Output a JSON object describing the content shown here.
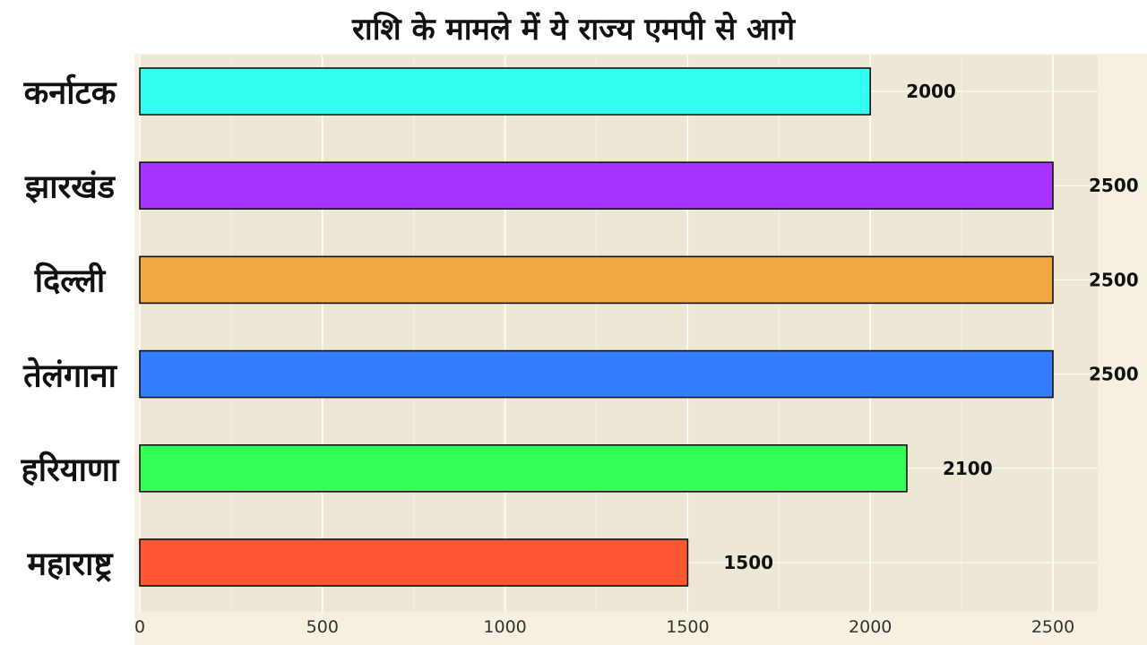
{
  "chart_data": {
    "type": "bar",
    "orientation": "horizontal",
    "title": "राशि के मामले में ये राज्य एमपी से आगे",
    "categories": [
      "कर्नाटक",
      "झारखंड",
      "दिल्ली",
      "तेलंगाना",
      "हरियाणा",
      "महाराष्ट्र"
    ],
    "values": [
      2000,
      2500,
      2500,
      2500,
      2100,
      1500
    ],
    "data_labels": [
      "2000",
      "2500",
      "2500",
      "2500",
      "2100",
      "1500"
    ],
    "colors": [
      "#33fff0",
      "#a633ff",
      "#f2a944",
      "#337eff",
      "#33ff57",
      "#ff5733"
    ],
    "xticks": [
      "0",
      "500",
      "1000",
      "1500",
      "2000",
      "2500"
    ],
    "xlim": [
      0,
      2620
    ],
    "grid": true,
    "legend": "none"
  }
}
